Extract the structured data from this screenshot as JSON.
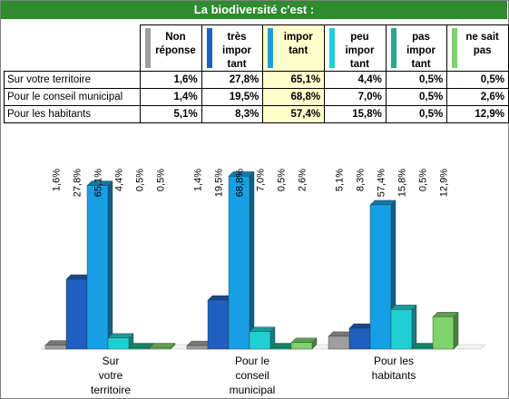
{
  "title": "La biodiversité c'est :",
  "colors": {
    "title_bg": "#2e8b2e",
    "highlight": "#ffffcc",
    "series": [
      "#9e9e9e",
      "#1f5fbf",
      "#16a0e3",
      "#1fcfd4",
      "#2aa78b",
      "#7ed36a"
    ]
  },
  "columns": [
    {
      "label_lines": [
        "Non",
        "réponse"
      ]
    },
    {
      "label_lines": [
        "très",
        "impor",
        "tant"
      ]
    },
    {
      "label_lines": [
        "impor",
        "tant"
      ]
    },
    {
      "label_lines": [
        "peu",
        "impor",
        "tant"
      ]
    },
    {
      "label_lines": [
        "pas",
        "impor",
        "tant"
      ]
    },
    {
      "label_lines": [
        "ne sait",
        "pas"
      ]
    }
  ],
  "rows": [
    {
      "label": "Sur votre territoire",
      "cells": [
        "1,6%",
        "27,8%",
        "65,1%",
        "4,4%",
        "0,5%",
        "0,5%"
      ]
    },
    {
      "label": "Pour le conseil municipal",
      "cells": [
        "1,4%",
        "19,5%",
        "68,8%",
        "7,0%",
        "0,5%",
        "2,6%"
      ]
    },
    {
      "label": "Pour les habitants",
      "cells": [
        "5,1%",
        "8,3%",
        "57,4%",
        "15,8%",
        "0,5%",
        "12,9%"
      ]
    }
  ],
  "chart_data": {
    "type": "bar",
    "categories": [
      [
        "Sur",
        "votre",
        "territoire"
      ],
      [
        "Pour le",
        "conseil",
        "municipal"
      ],
      [
        "Pour les",
        "habitants"
      ]
    ],
    "series": [
      {
        "name": "Non réponse",
        "values": [
          1.6,
          1.4,
          5.1
        ]
      },
      {
        "name": "très important",
        "values": [
          27.8,
          19.5,
          8.3
        ]
      },
      {
        "name": "important",
        "values": [
          65.1,
          68.8,
          57.4
        ]
      },
      {
        "name": "peu important",
        "values": [
          4.4,
          7.0,
          15.8
        ]
      },
      {
        "name": "pas important",
        "values": [
          0.5,
          0.5,
          0.5
        ]
      },
      {
        "name": "ne sait pas",
        "values": [
          0.5,
          2.6,
          12.9
        ]
      }
    ],
    "data_labels": [
      [
        "1,6%",
        "27,8%",
        "65,1%",
        "4,4%",
        "0,5%",
        "0,5%"
      ],
      [
        "1,4%",
        "19,5%",
        "68,8%",
        "7,0%",
        "0,5%",
        "2,6%"
      ],
      [
        "5,1%",
        "8,3%",
        "57,4%",
        "15,8%",
        "0,5%",
        "12,9%"
      ]
    ],
    "ylim": [
      0,
      70
    ],
    "grid": false,
    "legend": "none",
    "style": "3d"
  }
}
